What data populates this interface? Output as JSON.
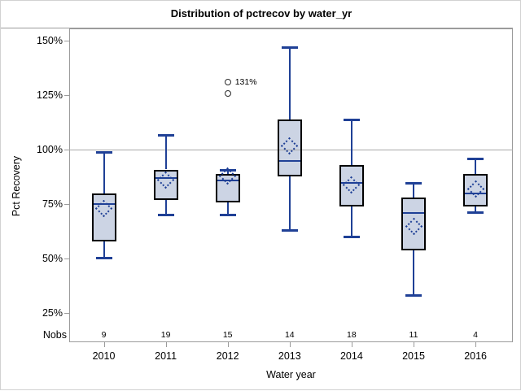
{
  "title": "Distribution of pctrecov by water_yr",
  "y_axis": {
    "label": "Pct Recovery",
    "ticks": [
      {
        "label": "150%",
        "value": 150
      },
      {
        "label": "125%",
        "value": 125
      },
      {
        "label": "100%",
        "value": 100
      },
      {
        "label": "75%",
        "value": 75
      },
      {
        "label": "50%",
        "value": 50
      },
      {
        "label": "25%",
        "value": 25
      }
    ]
  },
  "x_axis": {
    "label": "Water year"
  },
  "nobs_label": "Nobs",
  "reference_line_value": 100,
  "colors": {
    "box_fill": "#ccd4e4",
    "box_border": "#000000",
    "line_blue": "#1f4096",
    "frame_gray": "#9b9b9b",
    "refline_gray": "#a9a9a9",
    "outlier_stroke": "#2b2b2b"
  },
  "chart_data": {
    "type": "boxplot",
    "title": "Distribution of pctrecov by water_yr",
    "xlabel": "Water year",
    "ylabel": "Pct Recovery",
    "ylim": [
      12,
      156
    ],
    "ytick_values": [
      25,
      50,
      75,
      100,
      125,
      150
    ],
    "categories": [
      "2010",
      "2011",
      "2012",
      "2013",
      "2014",
      "2015",
      "2016"
    ],
    "series": [
      {
        "year": "2010",
        "nobs": "9",
        "low": 50,
        "q1": 58,
        "median": 75,
        "mean": 73,
        "q3": 80,
        "high": 99,
        "outliers": []
      },
      {
        "year": "2011",
        "nobs": "19",
        "low": 70,
        "q1": 77,
        "median": 87,
        "mean": 86,
        "q3": 91,
        "high": 107,
        "outliers": []
      },
      {
        "year": "2012",
        "nobs": "15",
        "low": 70,
        "q1": 76,
        "median": 86,
        "mean": 88,
        "q3": 89,
        "high": 91,
        "outliers": [
          {
            "value": 131,
            "label": "131%"
          },
          {
            "value": 126,
            "label": ""
          }
        ]
      },
      {
        "year": "2013",
        "nobs": "14",
        "low": 63,
        "q1": 88,
        "median": 95,
        "mean": 102,
        "q3": 114,
        "high": 147,
        "outliers": []
      },
      {
        "year": "2014",
        "nobs": "18",
        "low": 60,
        "q1": 74,
        "median": 85,
        "mean": 84,
        "q3": 93,
        "high": 114,
        "outliers": []
      },
      {
        "year": "2015",
        "nobs": "11",
        "low": 33,
        "q1": 54,
        "median": 71,
        "mean": 65,
        "q3": 78,
        "high": 85,
        "outliers": []
      },
      {
        "year": "2016",
        "nobs": "4",
        "low": 71,
        "q1": 74,
        "median": 80,
        "mean": 82,
        "q3": 89,
        "high": 96,
        "outliers": []
      }
    ],
    "legend": null,
    "grid": "off",
    "reference_line": 100
  }
}
